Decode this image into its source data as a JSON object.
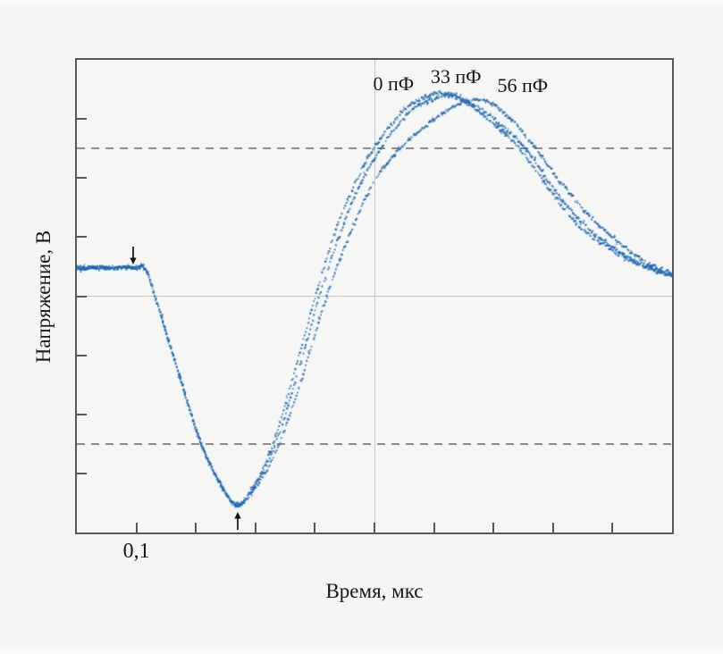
{
  "figure": {
    "background": "#f5f5f3",
    "trace_color": "#1b68b4",
    "axis_color": "#56575a",
    "grid_color": "#c7c7c4",
    "cursor_color": "#8e8e8c",
    "text_color": "#161616"
  },
  "chart_data": {
    "type": "scatter",
    "title": "",
    "xlabel": "Время, мкс",
    "ylabel": "Напряжение, В",
    "x_range_us": [
      0,
      1.0
    ],
    "x_tick_step_us": 0.1,
    "x_tick_labels": [
      "0,1"
    ],
    "x_labeled_tick_us": 0.1,
    "y_divisions": 8,
    "y_tick_labels": [],
    "grid": "center-crosshair",
    "crosshair": {
      "x_us": 0.5,
      "y_div": 0
    },
    "cursor_lines_div": [
      2.5,
      -2.5
    ],
    "legend_position": "labels-above-peaks",
    "markers": [
      {
        "name": "arrow-down",
        "dir": "down",
        "t_us": 0.095,
        "tip_v_div": 0.54,
        "tail_v_div": 0.84
      },
      {
        "name": "arrow-up",
        "dir": "up",
        "t_us": 0.27,
        "tip_v_div": -3.65,
        "tail_v_div": -3.95
      }
    ],
    "series": [
      {
        "label": "0 пФ",
        "label_anchor": {
          "t_us": 0.532,
          "v_div": 3.59
        },
        "points": [
          [
            0.0,
            0.476
          ],
          [
            0.096,
            0.476
          ],
          [
            0.116,
            0.446
          ],
          [
            0.131,
            0.008
          ],
          [
            0.149,
            -0.582
          ],
          [
            0.179,
            -1.565
          ],
          [
            0.209,
            -2.503
          ],
          [
            0.239,
            -3.138
          ],
          [
            0.269,
            -3.531
          ],
          [
            0.296,
            -3.229
          ],
          [
            0.329,
            -2.518
          ],
          [
            0.366,
            -1.263
          ],
          [
            0.401,
            0.008
          ],
          [
            0.438,
            1.202
          ],
          [
            0.471,
            1.989
          ],
          [
            0.502,
            2.548
          ],
          [
            0.547,
            3.123
          ],
          [
            0.577,
            3.335
          ],
          [
            0.613,
            3.441
          ],
          [
            0.652,
            3.274
          ],
          [
            0.694,
            2.972
          ],
          [
            0.74,
            2.548
          ],
          [
            0.79,
            1.868
          ],
          [
            0.839,
            1.233
          ],
          [
            0.892,
            0.824
          ],
          [
            0.944,
            0.537
          ],
          [
            1.0,
            0.34
          ]
        ]
      },
      {
        "label": "33 пФ",
        "label_anchor": {
          "t_us": 0.637,
          "v_div": 3.71
        },
        "points": [
          [
            0.0,
            0.476
          ],
          [
            0.096,
            0.476
          ],
          [
            0.116,
            0.446
          ],
          [
            0.131,
            0.008
          ],
          [
            0.149,
            -0.582
          ],
          [
            0.179,
            -1.565
          ],
          [
            0.209,
            -2.503
          ],
          [
            0.239,
            -3.138
          ],
          [
            0.269,
            -3.531
          ],
          [
            0.297,
            -3.244
          ],
          [
            0.332,
            -2.548
          ],
          [
            0.371,
            -1.308
          ],
          [
            0.408,
            0.008
          ],
          [
            0.446,
            1.157
          ],
          [
            0.479,
            1.943
          ],
          [
            0.514,
            2.548
          ],
          [
            0.559,
            3.108
          ],
          [
            0.599,
            3.335
          ],
          [
            0.634,
            3.395
          ],
          [
            0.67,
            3.214
          ],
          [
            0.709,
            2.926
          ],
          [
            0.754,
            2.503
          ],
          [
            0.802,
            1.807
          ],
          [
            0.85,
            1.233
          ],
          [
            0.901,
            0.824
          ],
          [
            0.949,
            0.537
          ],
          [
            1.0,
            0.34
          ]
        ]
      },
      {
        "label": "56 пФ",
        "label_anchor": {
          "t_us": 0.749,
          "v_div": 3.56
        },
        "points": [
          [
            0.0,
            0.476
          ],
          [
            0.096,
            0.476
          ],
          [
            0.116,
            0.446
          ],
          [
            0.131,
            0.008
          ],
          [
            0.149,
            -0.582
          ],
          [
            0.179,
            -1.565
          ],
          [
            0.209,
            -2.503
          ],
          [
            0.239,
            -3.138
          ],
          [
            0.269,
            -3.531
          ],
          [
            0.299,
            -3.259
          ],
          [
            0.336,
            -2.594
          ],
          [
            0.378,
            -1.399
          ],
          [
            0.42,
            0.008
          ],
          [
            0.459,
            1.051
          ],
          [
            0.494,
            1.837
          ],
          [
            0.547,
            2.548
          ],
          [
            0.592,
            2.926
          ],
          [
            0.637,
            3.229
          ],
          [
            0.682,
            3.32
          ],
          [
            0.719,
            3.093
          ],
          [
            0.767,
            2.548
          ],
          [
            0.814,
            1.913
          ],
          [
            0.862,
            1.353
          ],
          [
            0.91,
            0.915
          ],
          [
            0.955,
            0.582
          ],
          [
            1.0,
            0.386
          ]
        ]
      }
    ]
  }
}
